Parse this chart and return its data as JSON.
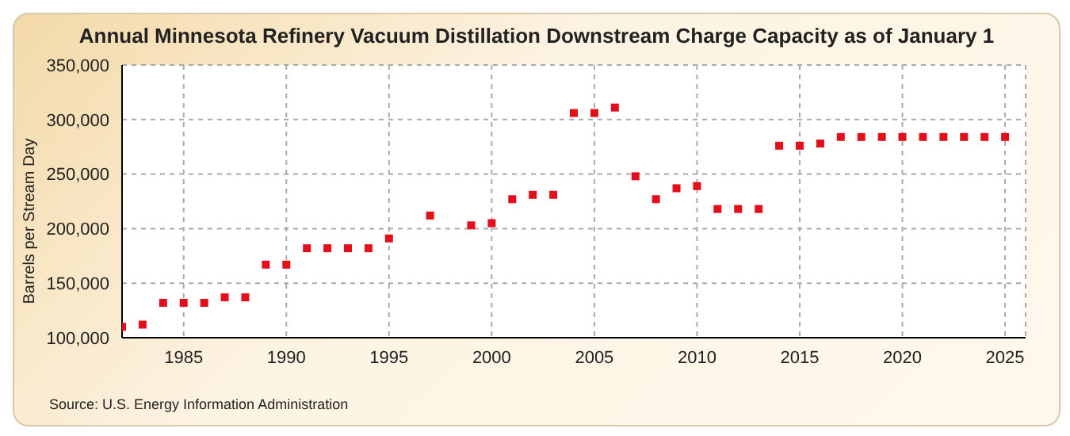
{
  "chart_data": {
    "type": "scatter",
    "title": "Annual Minnesota Refinery Vacuum Distillation Downstream Charge Capacity as of January 1",
    "ylabel": "Barrels per Stream Day",
    "annotations": [
      "Source: U.S. Energy Information Administration"
    ],
    "x": [
      1982,
      1983,
      1984,
      1985,
      1986,
      1987,
      1988,
      1989,
      1990,
      1991,
      1992,
      1993,
      1994,
      1995,
      1997,
      1999,
      2000,
      2001,
      2002,
      2003,
      2004,
      2005,
      2006,
      2007,
      2008,
      2009,
      2010,
      2011,
      2012,
      2013,
      2014,
      2015,
      2016,
      2017,
      2018,
      2019,
      2020,
      2021,
      2022,
      2023,
      2024,
      2025
    ],
    "series": [
      {
        "color": "#e3101c",
        "values": [
          110000,
          112000,
          132000,
          132000,
          132000,
          137000,
          137000,
          167000,
          167000,
          182000,
          182000,
          182000,
          182000,
          191000,
          212000,
          203000,
          205000,
          227000,
          231000,
          231000,
          306000,
          306000,
          311000,
          248000,
          227000,
          237000,
          239000,
          218000,
          218000,
          218000,
          276000,
          276000,
          278000,
          284000,
          284000,
          284000,
          284000,
          284000,
          284000,
          284000,
          284000,
          284000
        ]
      }
    ],
    "xlim": [
      1982,
      2026
    ],
    "xticks": [
      1985,
      1990,
      1995,
      2000,
      2005,
      2010,
      2015,
      2020,
      2025
    ],
    "ylim": [
      100000,
      350000
    ],
    "yticks": [
      {
        "value": 100000,
        "label": "100,000"
      },
      {
        "value": 150000,
        "label": "150,000"
      },
      {
        "value": 200000,
        "label": "200,000"
      },
      {
        "value": 250000,
        "label": "250,000"
      },
      {
        "value": 300000,
        "label": "300,000"
      },
      {
        "value": 350000,
        "label": "350,000"
      }
    ],
    "grid": true,
    "marker": "square",
    "legend": false
  }
}
